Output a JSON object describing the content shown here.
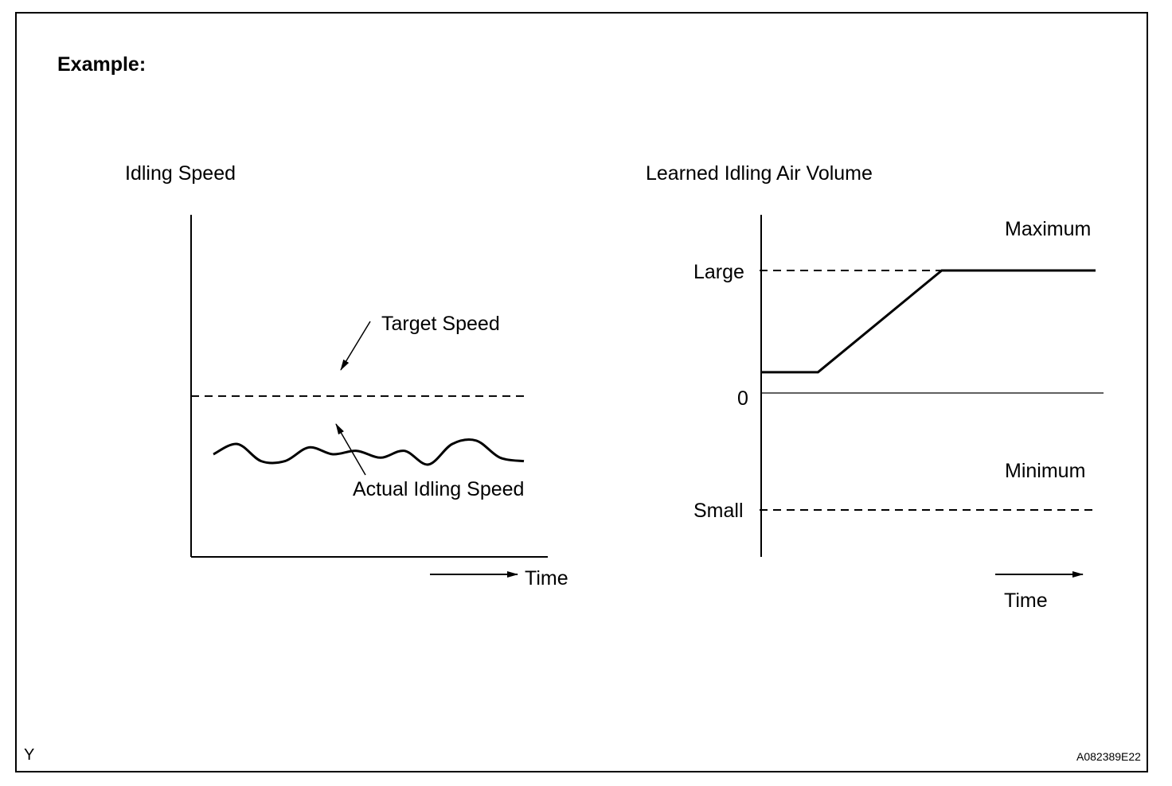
{
  "header": {
    "title": "Example:"
  },
  "footer": {
    "left_mark": "Y",
    "figure_id": "A082389E22"
  },
  "chart_data": [
    {
      "type": "line",
      "title": "Idling Speed",
      "xlabel": "Time",
      "ylabel": "",
      "series": [
        {
          "name": "Target Speed",
          "style": "dashed",
          "values": [
            0.47,
            0.47
          ]
        },
        {
          "name": "Actual Idling Speed",
          "style": "solid",
          "values": [
            0.3,
            0.33,
            0.28,
            0.28,
            0.32,
            0.3,
            0.31,
            0.29,
            0.31,
            0.27,
            0.33,
            0.34,
            0.29,
            0.28
          ]
        }
      ],
      "annotations": [
        "Target Speed",
        "Actual Idling Speed"
      ],
      "axis_arrow_label": "Time"
    },
    {
      "type": "line",
      "title": "Learned Idling Air Volume",
      "xlabel": "Time",
      "ylabel": "",
      "y_tick_labels": [
        "Large",
        "0",
        "Small"
      ],
      "y_ticks": {
        "Large": 1,
        "0": 0,
        "Small": -1
      },
      "reference_lines": [
        {
          "label": "Maximum",
          "level": "Large",
          "style": "dashed"
        },
        {
          "label": "Minimum",
          "level": "Small",
          "style": "dashed"
        }
      ],
      "series": [
        {
          "name": "Learned Idling Air Volume",
          "style": "solid",
          "x": [
            0,
            0.17,
            0.54,
            1.0
          ],
          "values": [
            0.17,
            0.17,
            1.0,
            1.0
          ]
        }
      ],
      "axis_arrow_label": "Time"
    }
  ]
}
